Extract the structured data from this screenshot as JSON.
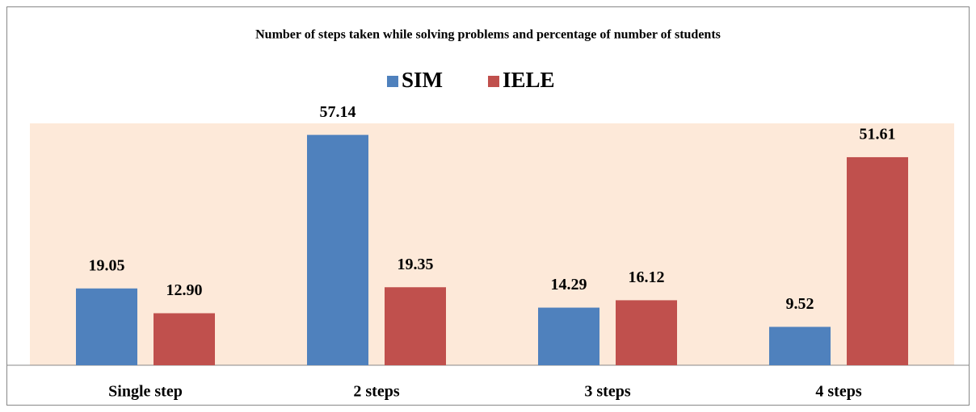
{
  "chart_data": {
    "type": "bar",
    "title": "Number of steps taken while solving problems and percentage of number of students",
    "categories": [
      "Single step",
      "2 steps",
      "3 steps",
      "4 steps"
    ],
    "series": [
      {
        "name": "SIM",
        "color": "#4f81bd",
        "values": [
          19.05,
          57.14,
          14.29,
          9.52
        ],
        "value_labels": [
          "19.05",
          "57.14",
          "14.29",
          "9.52"
        ]
      },
      {
        "name": "IELE",
        "color": "#c0504d",
        "values": [
          12.9,
          19.35,
          16.12,
          51.61
        ],
        "value_labels": [
          "12.90",
          "19.35",
          "16.12",
          "51.61"
        ]
      }
    ],
    "ylim": [
      0,
      60
    ],
    "plot_background": "#fde9d9",
    "legend": "top"
  }
}
